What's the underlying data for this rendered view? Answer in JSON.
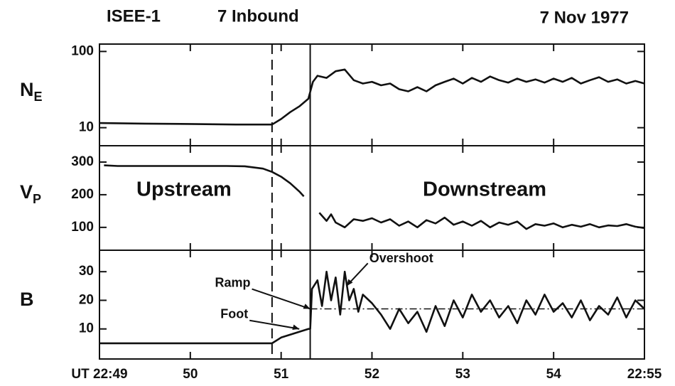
{
  "chart_data": [
    {
      "type": "line",
      "title": "ISEE-1",
      "subtitle": "7 Inbound",
      "date": "7 Nov 1977",
      "ylabel": "N",
      "ylabel_sub": "E",
      "yscale": "log",
      "xlim": [
        49,
        55
      ],
      "xticks": [
        49,
        50,
        51,
        52,
        53,
        54,
        55
      ],
      "ylim": [
        5.8,
        125
      ],
      "yticks": [
        10,
        100
      ],
      "vlines": [
        {
          "x": 50.9,
          "style": "dashed"
        },
        {
          "x": 51.32,
          "style": "solid"
        }
      ],
      "series": [
        {
          "color": "#111111",
          "x": [
            49.0,
            49.5,
            50.0,
            50.5,
            50.9,
            51.0,
            51.1,
            51.2,
            51.3,
            51.35,
            51.4,
            51.5,
            51.6,
            51.7,
            51.8,
            51.9,
            52.0,
            52.1,
            52.2,
            52.3,
            52.4,
            52.5,
            52.6,
            52.7,
            52.8,
            52.9,
            53.0,
            53.1,
            53.2,
            53.3,
            53.4,
            53.5,
            53.6,
            53.7,
            53.8,
            53.9,
            54.0,
            54.1,
            54.2,
            54.3,
            54.4,
            54.5,
            54.6,
            54.7,
            54.8,
            54.9,
            55.0
          ],
          "values": [
            11.5,
            11.3,
            11.2,
            11.0,
            11.0,
            13,
            16,
            19,
            24,
            40,
            48,
            45,
            55,
            58,
            42,
            38,
            40,
            36,
            38,
            32,
            30,
            34,
            30,
            36,
            40,
            44,
            38,
            45,
            40,
            47,
            42,
            39,
            44,
            40,
            43,
            39,
            44,
            40,
            45,
            38,
            42,
            46,
            40,
            43,
            38,
            41,
            38
          ]
        }
      ]
    },
    {
      "type": "line",
      "ylabel": "V",
      "ylabel_sub": "P",
      "labels": [
        "Upstream",
        "Downstream"
      ],
      "xlim": [
        49,
        55
      ],
      "xticks": [
        49,
        50,
        51,
        52,
        53,
        54,
        55
      ],
      "ylim": [
        30,
        350
      ],
      "yticks": [
        100,
        200,
        300
      ],
      "vlines": [
        {
          "x": 50.9,
          "style": "dashed"
        },
        {
          "x": 51.32,
          "style": "solid"
        }
      ],
      "series": [
        {
          "color": "#111111",
          "x": [
            49.05,
            49.2,
            49.4,
            49.6,
            49.8,
            50.0,
            50.2,
            50.4,
            50.6,
            50.8,
            50.9,
            51.0,
            51.1,
            51.2,
            51.25,
            51.33,
            51.42,
            51.5,
            51.55,
            51.6,
            51.7,
            51.8,
            51.9,
            52.0,
            52.1,
            52.2,
            52.3,
            52.4,
            52.5,
            52.6,
            52.7,
            52.8,
            52.9,
            53.0,
            53.1,
            53.2,
            53.3,
            53.4,
            53.5,
            53.6,
            53.7,
            53.8,
            53.9,
            54.0,
            54.1,
            54.2,
            54.3,
            54.4,
            54.5,
            54.6,
            54.7,
            54.8,
            54.9,
            55.0
          ],
          "values": [
            290,
            288,
            288,
            288,
            288,
            288,
            288,
            288,
            287,
            280,
            270,
            255,
            235,
            210,
            195,
            null,
            145,
            120,
            140,
            115,
            100,
            125,
            120,
            128,
            115,
            125,
            105,
            118,
            100,
            122,
            112,
            130,
            108,
            118,
            105,
            120,
            100,
            115,
            108,
            118,
            95,
            110,
            105,
            112,
            100,
            108,
            102,
            110,
            100,
            106,
            104,
            110,
            102,
            98
          ]
        }
      ]
    },
    {
      "type": "line",
      "ylabel": "B",
      "xlim": [
        49,
        55
      ],
      "xticks": [
        {
          "value": 49,
          "label": "UT 22:49"
        },
        50,
        51,
        52,
        53,
        54,
        {
          "value": 55,
          "label": "22:55"
        }
      ],
      "ylim": [
        -0.5,
        37.5
      ],
      "yticks": [
        10,
        20,
        30
      ],
      "vlines": [
        {
          "x": 50.9,
          "style": "dashed"
        },
        {
          "x": 51.32,
          "style": "solid"
        }
      ],
      "hline": {
        "value": 17,
        "from": 51.32,
        "style": "dashdot"
      },
      "annotations": [
        {
          "text": "Ramp",
          "x": 51.32,
          "y": 17
        },
        {
          "text": "Foot",
          "x": 51.2,
          "y": 10
        },
        {
          "text": "Overshoot",
          "x": 51.72,
          "y": 25
        }
      ],
      "series": [
        {
          "color": "#111111",
          "x": [
            49.0,
            49.5,
            50.0,
            50.5,
            50.9,
            51.0,
            51.1,
            51.2,
            51.3,
            51.32,
            51.34,
            51.4,
            51.45,
            51.5,
            51.55,
            51.6,
            51.65,
            51.7,
            51.75,
            51.8,
            51.85,
            51.9,
            52.0,
            52.1,
            52.2,
            52.3,
            52.4,
            52.5,
            52.6,
            52.7,
            52.8,
            52.9,
            53.0,
            53.1,
            53.2,
            53.3,
            53.4,
            53.5,
            53.6,
            53.7,
            53.8,
            53.9,
            54.0,
            54.1,
            54.2,
            54.3,
            54.4,
            54.5,
            54.6,
            54.7,
            54.8,
            54.9,
            55.0
          ],
          "values": [
            5,
            5,
            5,
            5,
            5,
            7,
            8,
            9,
            10,
            10,
            24,
            27,
            18,
            30,
            20,
            28,
            15,
            30,
            20,
            24,
            16,
            22,
            19,
            15,
            10,
            17,
            12,
            16,
            9,
            18,
            11,
            20,
            14,
            22,
            16,
            20,
            14,
            18,
            12,
            20,
            15,
            22,
            16,
            19,
            14,
            20,
            13,
            18,
            15,
            21,
            14,
            20,
            17
          ]
        }
      ]
    }
  ]
}
